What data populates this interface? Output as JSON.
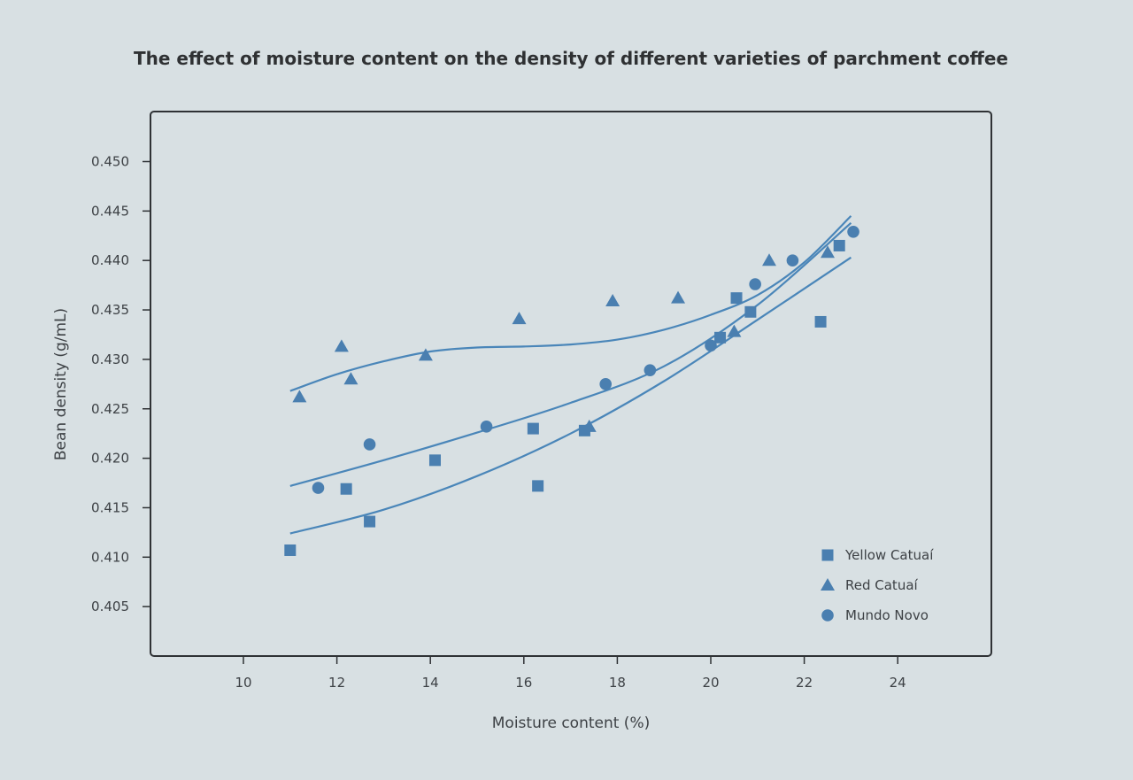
{
  "chart_data": {
    "type": "scatter",
    "title": "The effect of moisture content on the density of different varieties of parchment coffee",
    "xlabel": "Moisture content (%)",
    "ylabel": "Bean density (g/mL)",
    "xlim": [
      8,
      26
    ],
    "ylim": [
      0.4,
      0.4545
    ],
    "x_ticks": [
      10,
      12,
      14,
      16,
      18,
      20,
      22,
      24
    ],
    "x_tick_labels": [
      "10",
      "12",
      "14",
      "16",
      "18",
      "20",
      "22",
      "24"
    ],
    "y_ticks": [
      0.405,
      0.41,
      0.415,
      0.42,
      0.425,
      0.43,
      0.435,
      0.44,
      0.445,
      0.45
    ],
    "y_tick_labels": [
      "0.405",
      "0.410",
      "0.415",
      "0.420",
      "0.425",
      "0.430",
      "0.435",
      "0.440",
      "0.445",
      "0.450"
    ],
    "grid": false,
    "legend_position": "bottom-right",
    "marker_color": "#4a7fb0",
    "line_color": "#4a86b9",
    "series": [
      {
        "name": "Yellow Catuaí",
        "marker": "square",
        "points": [
          [
            11.0,
            0.4107
          ],
          [
            12.2,
            0.4169
          ],
          [
            12.7,
            0.4136
          ],
          [
            14.1,
            0.4198
          ],
          [
            16.2,
            0.423
          ],
          [
            16.3,
            0.4172
          ],
          [
            17.3,
            0.4228
          ],
          [
            20.2,
            0.4322
          ],
          [
            20.55,
            0.4362
          ],
          [
            20.85,
            0.4348
          ],
          [
            22.35,
            0.4338
          ],
          [
            22.75,
            0.4415
          ]
        ],
        "trend": [
          [
            11.0,
            0.4124
          ],
          [
            13.0,
            0.4148
          ],
          [
            15.0,
            0.4182
          ],
          [
            17.0,
            0.4225
          ],
          [
            19.0,
            0.4278
          ],
          [
            21.0,
            0.434
          ],
          [
            23.0,
            0.4403
          ]
        ]
      },
      {
        "name": "Red Catuaí",
        "marker": "triangle",
        "points": [
          [
            11.2,
            0.4262
          ],
          [
            12.1,
            0.4313
          ],
          [
            12.3,
            0.428
          ],
          [
            13.9,
            0.4304
          ],
          [
            15.9,
            0.4341
          ],
          [
            17.4,
            0.4232
          ],
          [
            17.9,
            0.4359
          ],
          [
            19.3,
            0.4362
          ],
          [
            20.5,
            0.4328
          ],
          [
            21.25,
            0.44
          ],
          [
            22.5,
            0.4408
          ]
        ],
        "trend": [
          [
            11.0,
            0.4268
          ],
          [
            12.0,
            0.4285
          ],
          [
            13.0,
            0.4298
          ],
          [
            14.0,
            0.4308
          ],
          [
            15.0,
            0.4312
          ],
          [
            16.0,
            0.4313
          ],
          [
            17.0,
            0.4315
          ],
          [
            18.0,
            0.432
          ],
          [
            19.0,
            0.433
          ],
          [
            20.0,
            0.4345
          ],
          [
            21.0,
            0.4365
          ],
          [
            22.0,
            0.4398
          ],
          [
            23.0,
            0.4445
          ]
        ]
      },
      {
        "name": "Mundo Novo",
        "marker": "circle",
        "points": [
          [
            11.6,
            0.417
          ],
          [
            12.7,
            0.4214
          ],
          [
            15.2,
            0.4232
          ],
          [
            17.75,
            0.4275
          ],
          [
            18.7,
            0.4289
          ],
          [
            20.0,
            0.4314
          ],
          [
            20.95,
            0.4376
          ],
          [
            21.75,
            0.44
          ],
          [
            23.05,
            0.4429
          ]
        ],
        "trend": [
          [
            11.0,
            0.4172
          ],
          [
            13.0,
            0.4198
          ],
          [
            15.0,
            0.4226
          ],
          [
            17.0,
            0.4256
          ],
          [
            19.0,
            0.4293
          ],
          [
            21.0,
            0.4355
          ],
          [
            23.0,
            0.4438
          ]
        ]
      }
    ]
  }
}
